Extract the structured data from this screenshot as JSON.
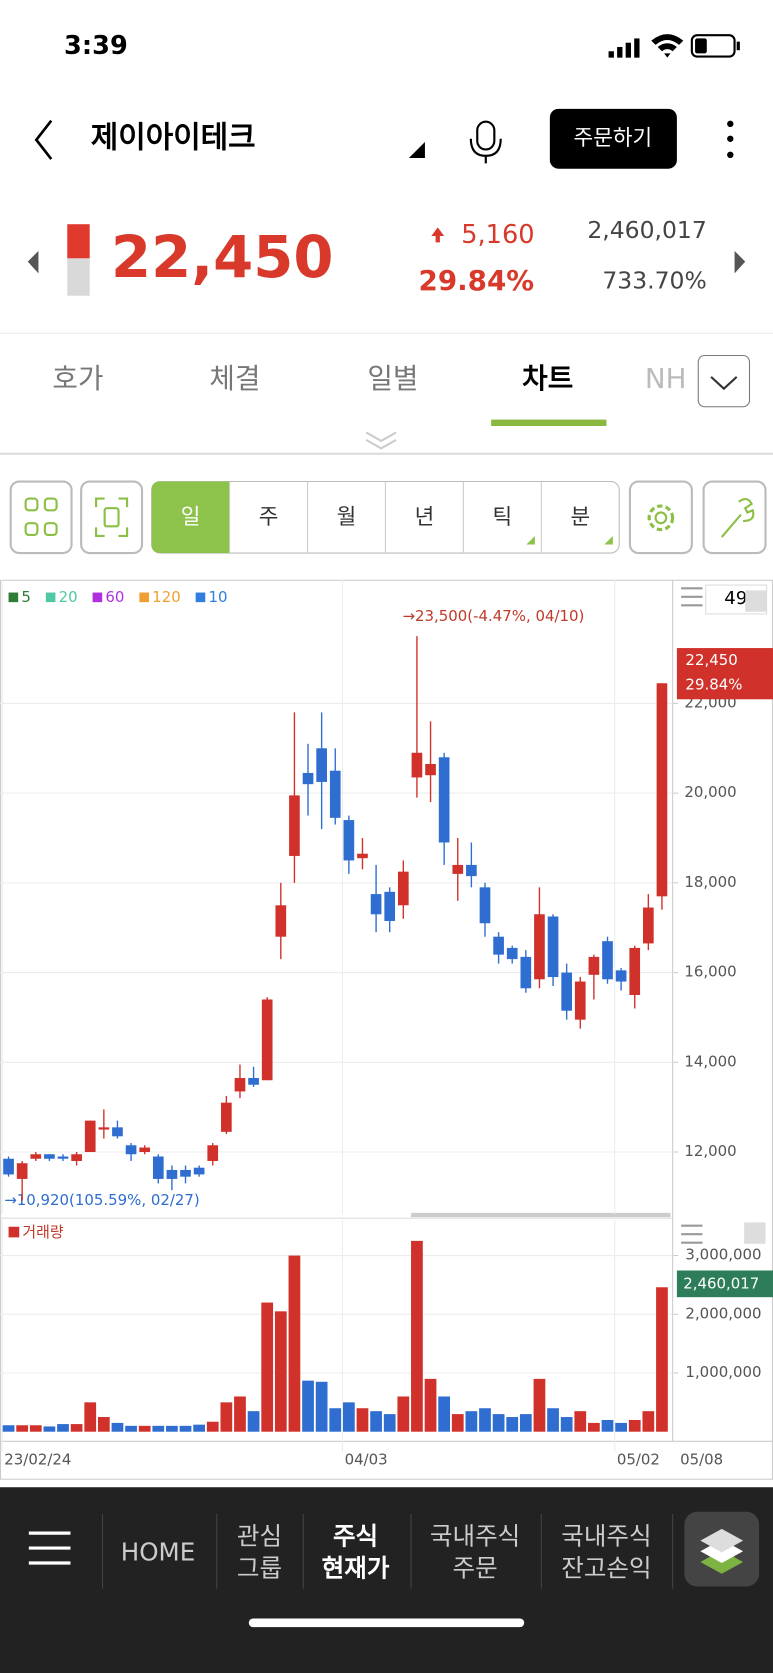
{
  "status_bar": {
    "time": "3:39"
  },
  "header": {
    "title": "제이아이테크",
    "order_button": "주문하기"
  },
  "quote": {
    "price": "22,450",
    "change": "5,160",
    "change_rate": "29.84%",
    "volume": "2,460,017",
    "volume_rate": "733.70%"
  },
  "tabs": [
    "호가",
    "체결",
    "일별",
    "차트",
    "NH"
  ],
  "period_buttons": [
    "일",
    "주",
    "월",
    "년",
    "틱",
    "분"
  ],
  "bottom_nav": [
    [
      "HOME"
    ],
    [
      "관심",
      "그룹"
    ],
    [
      "주식",
      "현재가"
    ],
    [
      "국내주식",
      "주문"
    ],
    [
      "국내주식",
      "잔고손익"
    ]
  ],
  "chart_data": {
    "type": "candlestick",
    "categories": [
      "23/02/24",
      null,
      null,
      null,
      null,
      null,
      null,
      null,
      null,
      null,
      null,
      null,
      null,
      null,
      null,
      null,
      null,
      null,
      null,
      null,
      null,
      null,
      null,
      null,
      null,
      "04/03",
      null,
      null,
      null,
      null,
      null,
      null,
      null,
      null,
      null,
      null,
      null,
      null,
      null,
      null,
      null,
      null,
      null,
      null,
      null,
      "05/02",
      null,
      null,
      null
    ],
    "x_end_label": "05/08",
    "open": [
      11850,
      11400,
      11850,
      11950,
      11900,
      11800,
      12000,
      12500,
      12550,
      12150,
      12000,
      11900,
      11600,
      11600,
      11650,
      11800,
      12450,
      13350,
      13650,
      13600,
      16800,
      18600,
      20450,
      21000,
      20500,
      19400,
      18550,
      17750,
      17800,
      17500,
      20350,
      20400,
      20800,
      18200,
      18400,
      17900,
      16800,
      16550,
      16350,
      15850,
      17250,
      16000,
      14950,
      15950,
      16700,
      16050,
      15500,
      16650,
      17700
    ],
    "high": [
      11900,
      11800,
      12000,
      11950,
      11950,
      12000,
      12700,
      12950,
      12700,
      12200,
      12150,
      11950,
      11700,
      11700,
      11700,
      12200,
      13250,
      13950,
      13900,
      15450,
      18000,
      21800,
      21100,
      21800,
      21000,
      19500,
      19000,
      18400,
      17900,
      18500,
      23500,
      21600,
      20900,
      19000,
      18900,
      18000,
      16900,
      16600,
      16500,
      17900,
      17300,
      16200,
      15900,
      16400,
      16800,
      16100,
      16600,
      17750,
      22450
    ],
    "low": [
      11450,
      10920,
      11800,
      11800,
      11800,
      11700,
      12000,
      12300,
      12300,
      11800,
      11950,
      11300,
      11150,
      11300,
      11450,
      11700,
      12400,
      13200,
      13450,
      13600,
      16300,
      18000,
      19500,
      19200,
      19300,
      18200,
      18300,
      16900,
      16900,
      17200,
      19900,
      19800,
      18400,
      17600,
      17900,
      16800,
      16200,
      16200,
      15550,
      15650,
      15700,
      14950,
      14750,
      15400,
      15750,
      15600,
      15200,
      16500,
      17400
    ],
    "close": [
      11500,
      11750,
      11950,
      11850,
      11850,
      11950,
      12700,
      12550,
      12350,
      11950,
      12100,
      11400,
      11400,
      11450,
      11500,
      12150,
      13100,
      13650,
      13500,
      15400,
      17500,
      19950,
      20200,
      20250,
      19450,
      18500,
      18650,
      17300,
      17150,
      18250,
      20900,
      20650,
      18900,
      18400,
      18150,
      17100,
      16400,
      16300,
      15650,
      17300,
      15900,
      15150,
      15800,
      16350,
      15850,
      15800,
      16550,
      17450,
      22450
    ],
    "volume": [
      110000,
      110000,
      110000,
      90000,
      130000,
      130000,
      500000,
      250000,
      150000,
      100000,
      100000,
      100000,
      100000,
      100000,
      120000,
      170000,
      500000,
      600000,
      350000,
      2200000,
      2050000,
      3000000,
      870000,
      850000,
      400000,
      500000,
      400000,
      350000,
      300000,
      600000,
      3250000,
      900000,
      600000,
      300000,
      350000,
      400000,
      300000,
      250000,
      300000,
      900000,
      400000,
      250000,
      350000,
      150000,
      200000,
      150000,
      200000,
      350000,
      2460017
    ],
    "up_color": "#d0322b",
    "down_color": "#2f6ed0",
    "ylim": [
      10620,
      24710
    ],
    "yticks": [
      {
        "value": 12000,
        "label": "12,000"
      },
      {
        "value": 14000,
        "label": "14,000"
      },
      {
        "value": 16000,
        "label": "16,000"
      },
      {
        "value": 18000,
        "label": "18,000"
      },
      {
        "value": 20000,
        "label": "20,000"
      },
      {
        "value": 22000,
        "label": "22,000"
      }
    ],
    "volume_title": "거래량",
    "volume_color": "#d0322b",
    "y2lim": [
      0,
      3600000
    ],
    "y2ticks": [
      {
        "value": 1000000,
        "label": "1,000,000"
      },
      {
        "value": 2000000,
        "label": "2,000,000"
      },
      {
        "value": 3000000,
        "label": "3,000,000"
      }
    ],
    "grid": true,
    "ma_legend": [
      {
        "name": "5",
        "color": "#2e7d32"
      },
      {
        "name": "20",
        "color": "#4fc9a4"
      },
      {
        "name": "60",
        "color": "#b030e0"
      },
      {
        "name": "120",
        "color": "#f0a030"
      },
      {
        "name": "10",
        "color": "#2f7ee0"
      }
    ],
    "high_annotation": "→23,500(-4.47%, 04/10)",
    "low_annotation": "→10,920(105.59%, 02/27)",
    "last_price_label": "22,450",
    "last_change_label": "29.84%",
    "last_volume_label": "2,460,017",
    "visible_count": "49"
  }
}
